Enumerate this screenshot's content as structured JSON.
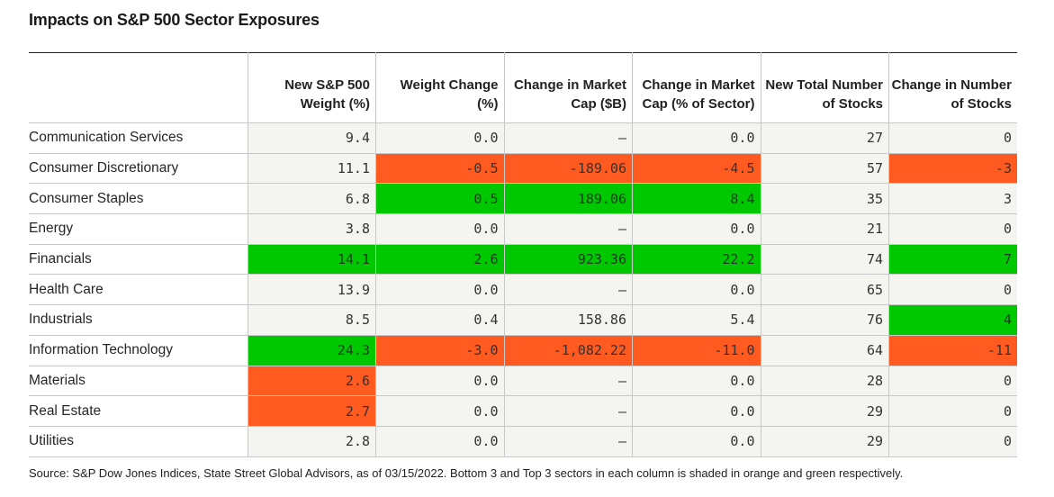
{
  "title": "Impacts on S&P 500 Sector Exposures",
  "source": "Source: S&P Dow Jones Indices, State Street Global Advisors, as of 03/15/2022. Bottom 3 and Top 3 sectors in each column is shaded in orange and green respectively.",
  "colors": {
    "orange": "#ff5a1f",
    "green": "#00c800",
    "cell_background": "#f4f4f1"
  },
  "chart_data": {
    "type": "table",
    "title": "Impacts on S&P 500 Sector Exposures",
    "columns": [
      "",
      "New S&P 500 Weight (%)",
      "Weight Change (%)",
      "Change in Market Cap ($B)",
      "Change in Market Cap (% of Sector)",
      "New Total Number of Stocks",
      "Change in Number of Stocks"
    ],
    "rows": [
      {
        "sector": "Communication Services",
        "values": [
          "9.4",
          "0.0",
          "—",
          "0.0",
          "27",
          "0"
        ],
        "shading": [
          "",
          "",
          "",
          "",
          "",
          ""
        ]
      },
      {
        "sector": "Consumer Discretionary",
        "values": [
          "11.1",
          "-0.5",
          "-189.06",
          "-4.5",
          "57",
          "-3"
        ],
        "shading": [
          "",
          "orange",
          "orange",
          "orange",
          "",
          "orange"
        ]
      },
      {
        "sector": "Consumer Staples",
        "values": [
          "6.8",
          "0.5",
          "189.06",
          "8.4",
          "35",
          "3"
        ],
        "shading": [
          "",
          "green",
          "green",
          "green",
          "",
          ""
        ]
      },
      {
        "sector": "Energy",
        "values": [
          "3.8",
          "0.0",
          "—",
          "0.0",
          "21",
          "0"
        ],
        "shading": [
          "",
          "",
          "",
          "",
          "",
          ""
        ]
      },
      {
        "sector": "Financials",
        "values": [
          "14.1",
          "2.6",
          "923.36",
          "22.2",
          "74",
          "7"
        ],
        "shading": [
          "green",
          "green",
          "green",
          "green",
          "",
          "green"
        ]
      },
      {
        "sector": "Health Care",
        "values": [
          "13.9",
          "0.0",
          "—",
          "0.0",
          "65",
          "0"
        ],
        "shading": [
          "",
          "",
          "",
          "",
          "",
          ""
        ]
      },
      {
        "sector": "Industrials",
        "values": [
          "8.5",
          "0.4",
          "158.86",
          "5.4",
          "76",
          "4"
        ],
        "shading": [
          "",
          "",
          "",
          "",
          "",
          "green"
        ]
      },
      {
        "sector": "Information Technology",
        "values": [
          "24.3",
          "-3.0",
          "-1,082.22",
          "-11.0",
          "64",
          "-11"
        ],
        "shading": [
          "green",
          "orange",
          "orange",
          "orange",
          "",
          "orange"
        ]
      },
      {
        "sector": "Materials",
        "values": [
          "2.6",
          "0.0",
          "—",
          "0.0",
          "28",
          "0"
        ],
        "shading": [
          "orange",
          "",
          "",
          "",
          "",
          ""
        ]
      },
      {
        "sector": "Real Estate",
        "values": [
          "2.7",
          "0.0",
          "—",
          "0.0",
          "29",
          "0"
        ],
        "shading": [
          "orange",
          "",
          "",
          "",
          "",
          ""
        ]
      },
      {
        "sector": "Utilities",
        "values": [
          "2.8",
          "0.0",
          "—",
          "0.0",
          "29",
          "0"
        ],
        "shading": [
          "",
          "",
          "",
          "",
          "",
          ""
        ]
      }
    ]
  }
}
